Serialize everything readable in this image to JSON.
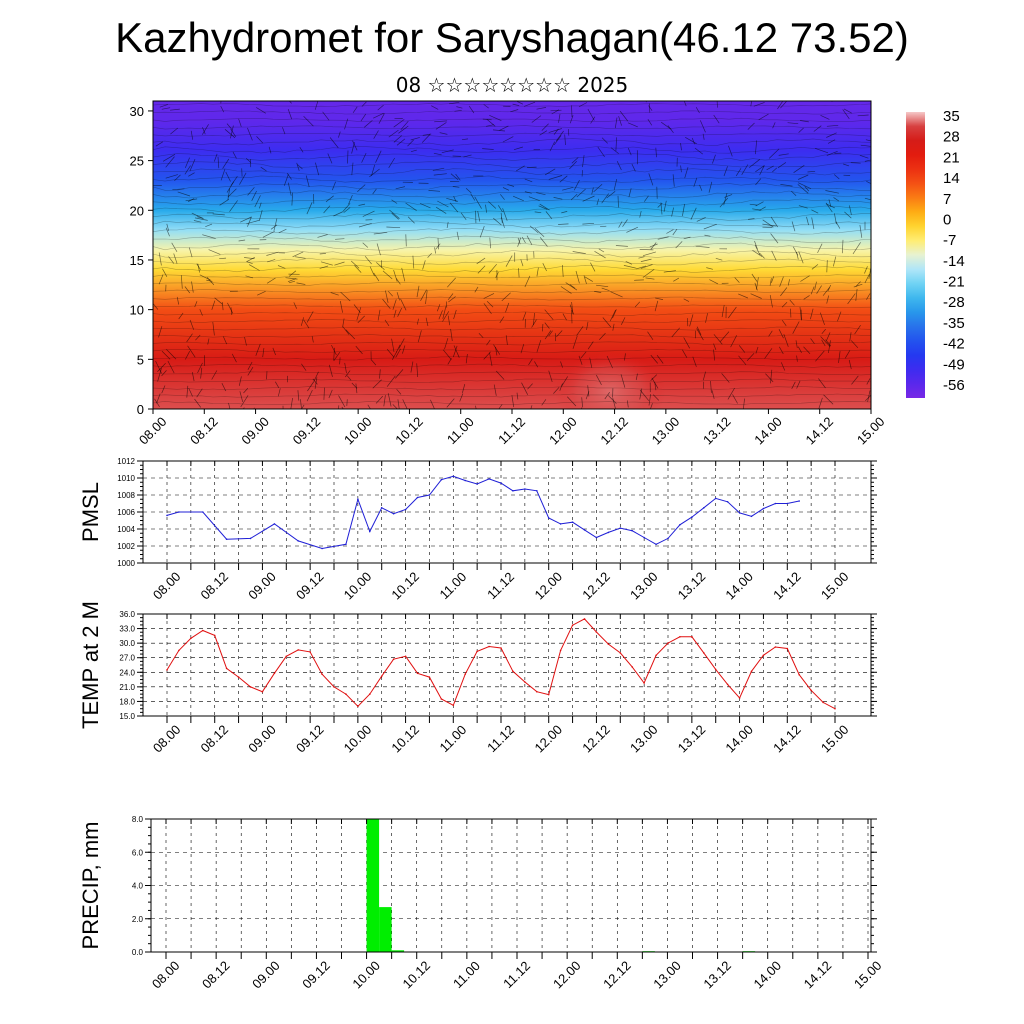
{
  "title": "Kazhydromet for Saryshagan(46.12 73.52)",
  "subtitle": "08 ☆☆☆☆☆☆☆☆ 2025",
  "time_labels": [
    "08.00",
    "08.12",
    "09.00",
    "09.12",
    "10.00",
    "10.12",
    "11.00",
    "11.12",
    "12.00",
    "12.12",
    "13.00",
    "13.12",
    "14.00",
    "14.12",
    "15.00"
  ],
  "colors": {
    "pmsl_line": "#1f1fd6",
    "temp_line": "#e01010",
    "precip_bar": "#00ee00"
  },
  "chart_data": [
    {
      "type": "heatmap",
      "name": "vertical-section",
      "y_ticks": [
        0,
        5,
        10,
        15,
        20,
        25,
        30
      ],
      "ylim": [
        0,
        31
      ],
      "colorbar_labels": [
        "35",
        "28",
        "21",
        "14",
        "7",
        "0",
        "-7",
        "-14",
        "-21",
        "-28",
        "-35",
        "-42",
        "-49",
        "-56"
      ],
      "colorbar_range": [
        -60,
        38
      ],
      "temperature_profile_by_level": [
        {
          "level": 0,
          "value": 34
        },
        {
          "level": 5,
          "value": 27
        },
        {
          "level": 10,
          "value": 14
        },
        {
          "level": 14,
          "value": -2
        },
        {
          "level": 16,
          "value": -9
        },
        {
          "level": 18,
          "value": -18
        },
        {
          "level": 20,
          "value": -28
        },
        {
          "level": 23,
          "value": -40
        },
        {
          "level": 26,
          "value": -50
        },
        {
          "level": 29,
          "value": -56
        },
        {
          "level": 31,
          "value": -57
        }
      ],
      "wind_field": "streamlines"
    },
    {
      "type": "line",
      "name": "pmsl",
      "ylabel": "PMSL",
      "ylim": [
        1000,
        1012
      ],
      "y_ticks": [
        "1000",
        "1002",
        "1004",
        "1006",
        "1008",
        "1010",
        "1012"
      ],
      "x_hours": [
        0,
        3,
        9,
        15,
        21,
        27,
        33,
        39,
        45,
        48,
        51,
        54,
        57,
        60,
        63,
        66,
        69,
        72,
        75,
        78,
        81,
        84,
        87,
        90,
        93,
        96,
        99,
        102,
        105,
        108,
        111,
        114,
        117,
        120,
        123,
        126,
        129,
        132,
        135,
        138,
        141,
        144,
        147,
        150,
        153,
        156,
        159,
        162,
        165,
        168
      ],
      "values": [
        1005.6,
        1006.0,
        1006.0,
        1002.8,
        1002.9,
        1004.6,
        1002.6,
        1001.7,
        1002.2,
        1007.5,
        1003.7,
        1006.5,
        1005.8,
        1006.3,
        1007.7,
        1008.0,
        1009.8,
        1010.2,
        1009.7,
        1009.3,
        1009.9,
        1009.4,
        1008.5,
        1008.7,
        1008.5,
        1005.3,
        1004.6,
        1004.8,
        1003.9,
        1003.0,
        1003.6,
        1004.1,
        1003.8,
        1003.0,
        1002.2,
        1002.9,
        1004.5,
        1005.4,
        1006.5,
        1007.6,
        1007.2,
        1005.9,
        1005.5,
        1006.4,
        1007.0,
        1007.0,
        1007.3,
        null,
        null,
        null
      ]
    },
    {
      "type": "line",
      "name": "temperature-2m",
      "ylabel": "TEMP at 2 M",
      "ylim": [
        15,
        36
      ],
      "y_ticks": [
        "15.0",
        "18.0",
        "21.0",
        "24.0",
        "27.0",
        "30.0",
        "33.0",
        "36.0"
      ],
      "x_hours": [
        0,
        3,
        6,
        9,
        12,
        15,
        18,
        21,
        24,
        27,
        30,
        33,
        36,
        39,
        42,
        45,
        48,
        51,
        54,
        57,
        60,
        63,
        66,
        69,
        72,
        75,
        78,
        81,
        84,
        87,
        90,
        93,
        96,
        99,
        102,
        105,
        108,
        111,
        114,
        117,
        120,
        123,
        126,
        129,
        132,
        135,
        138,
        141,
        144,
        147,
        150,
        153,
        156,
        159,
        162,
        165,
        168
      ],
      "values": [
        24.5,
        28.5,
        31.0,
        32.6,
        31.6,
        24.8,
        23.0,
        21.0,
        20.0,
        23.8,
        27.3,
        28.6,
        28.2,
        23.6,
        21.0,
        19.5,
        17.0,
        19.5,
        23.2,
        26.7,
        27.3,
        23.8,
        23.0,
        18.5,
        17.2,
        23.6,
        28.3,
        29.3,
        29.0,
        24.2,
        22.0,
        20.0,
        19.4,
        28.5,
        33.7,
        35.0,
        32.3,
        29.8,
        28.0,
        25.1,
        21.8,
        27.5,
        30.0,
        31.3,
        31.3,
        28.0,
        24.6,
        21.5,
        18.7,
        24.2,
        27.5,
        29.2,
        28.9,
        23.5,
        20.3,
        17.8,
        16.5
      ]
    },
    {
      "type": "bar",
      "name": "precipitation",
      "ylabel": "PRECIP, mm",
      "ylim": [
        0,
        8
      ],
      "y_ticks": [
        "0.0",
        "2.0",
        "4.0",
        "6.0",
        "8.0"
      ],
      "bar_width_hours": 3,
      "x_hours": [
        48,
        51,
        54,
        114,
        138
      ],
      "values": [
        8.0,
        2.7,
        0.1,
        0.05,
        0.05
      ]
    }
  ]
}
